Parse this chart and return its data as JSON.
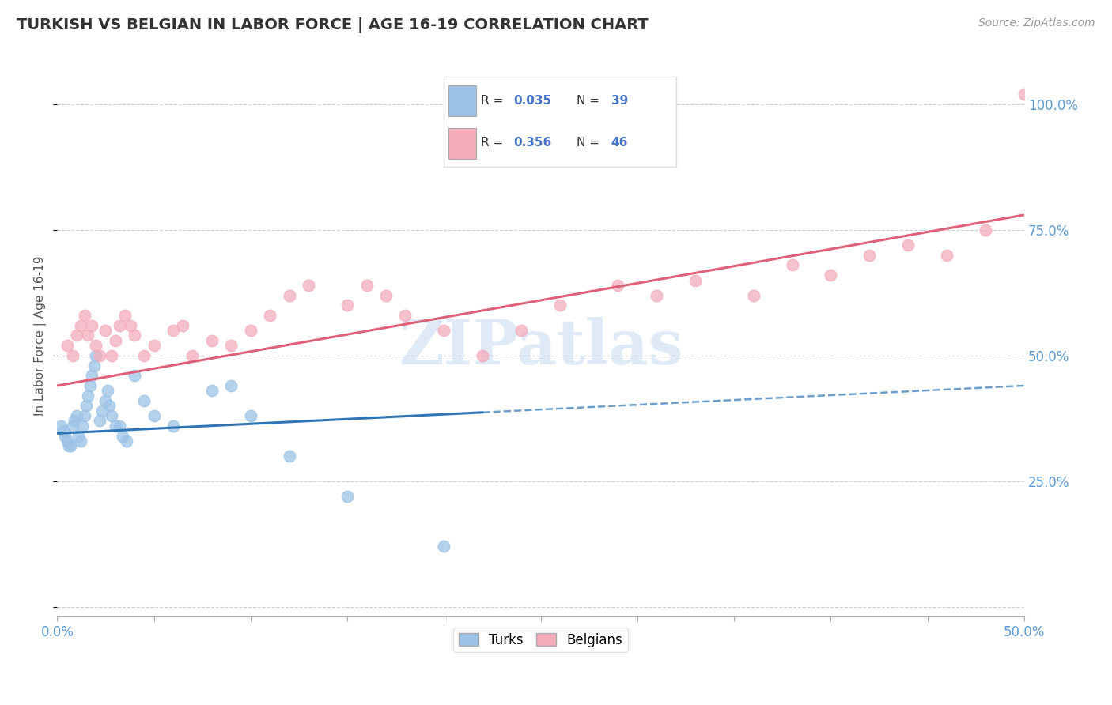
{
  "title": "TURKISH VS BELGIAN IN LABOR FORCE | AGE 16-19 CORRELATION CHART",
  "source": "Source: ZipAtlas.com",
  "ylabel": "In Labor Force | Age 16-19",
  "xlim": [
    0.0,
    0.5
  ],
  "ylim": [
    -0.02,
    1.1
  ],
  "yticks": [
    0.0,
    0.25,
    0.5,
    0.75,
    1.0
  ],
  "ytick_labels_right": [
    "",
    "25.0%",
    "50.0%",
    "75.0%",
    "100.0%"
  ],
  "xticks": [
    0.0,
    0.05,
    0.1,
    0.15,
    0.2,
    0.25,
    0.3,
    0.35,
    0.4,
    0.45,
    0.5
  ],
  "xtick_labels": [
    "0.0%",
    "",
    "",
    "",
    "",
    "",
    "",
    "",
    "",
    "",
    "50.0%"
  ],
  "title_color": "#333333",
  "title_fontsize": 14,
  "axis_tick_color": "#5b9bd5",
  "turks_color": "#9dc3e6",
  "belgians_color": "#f4acbb",
  "turks_line_color": "#2e75b6",
  "belgians_line_color": "#e0607a",
  "turks_R": 0.035,
  "turks_N": 39,
  "belgians_R": 0.356,
  "belgians_N": 46,
  "legend_text_color": "#4472c4",
  "watermark_color": "#c8d8f0",
  "turks_x": [
    0.002,
    0.003,
    0.004,
    0.005,
    0.006,
    0.007,
    0.008,
    0.009,
    0.01,
    0.011,
    0.012,
    0.013,
    0.014,
    0.015,
    0.016,
    0.017,
    0.018,
    0.019,
    0.02,
    0.022,
    0.023,
    0.025,
    0.026,
    0.027,
    0.028,
    0.03,
    0.032,
    0.034,
    0.036,
    0.04,
    0.045,
    0.05,
    0.06,
    0.08,
    0.09,
    0.1,
    0.12,
    0.15,
    0.2
  ],
  "turks_y": [
    0.36,
    0.35,
    0.34,
    0.33,
    0.32,
    0.32,
    0.36,
    0.37,
    0.38,
    0.34,
    0.33,
    0.36,
    0.38,
    0.4,
    0.42,
    0.44,
    0.46,
    0.48,
    0.5,
    0.37,
    0.39,
    0.41,
    0.43,
    0.4,
    0.38,
    0.36,
    0.36,
    0.34,
    0.33,
    0.46,
    0.41,
    0.38,
    0.36,
    0.43,
    0.44,
    0.38,
    0.3,
    0.22,
    0.12
  ],
  "belgians_x": [
    0.005,
    0.008,
    0.01,
    0.012,
    0.014,
    0.016,
    0.018,
    0.02,
    0.022,
    0.025,
    0.028,
    0.03,
    0.032,
    0.035,
    0.038,
    0.04,
    0.045,
    0.05,
    0.06,
    0.065,
    0.07,
    0.08,
    0.09,
    0.1,
    0.11,
    0.12,
    0.13,
    0.15,
    0.16,
    0.17,
    0.18,
    0.2,
    0.22,
    0.24,
    0.26,
    0.29,
    0.31,
    0.33,
    0.36,
    0.38,
    0.4,
    0.42,
    0.44,
    0.46,
    0.48,
    0.5
  ],
  "belgians_y": [
    0.52,
    0.5,
    0.54,
    0.56,
    0.58,
    0.54,
    0.56,
    0.52,
    0.5,
    0.55,
    0.5,
    0.53,
    0.56,
    0.58,
    0.56,
    0.54,
    0.5,
    0.52,
    0.55,
    0.56,
    0.5,
    0.53,
    0.52,
    0.55,
    0.58,
    0.62,
    0.64,
    0.6,
    0.64,
    0.62,
    0.58,
    0.55,
    0.5,
    0.55,
    0.6,
    0.64,
    0.62,
    0.65,
    0.62,
    0.68,
    0.66,
    0.7,
    0.72,
    0.7,
    0.75,
    1.02
  ]
}
